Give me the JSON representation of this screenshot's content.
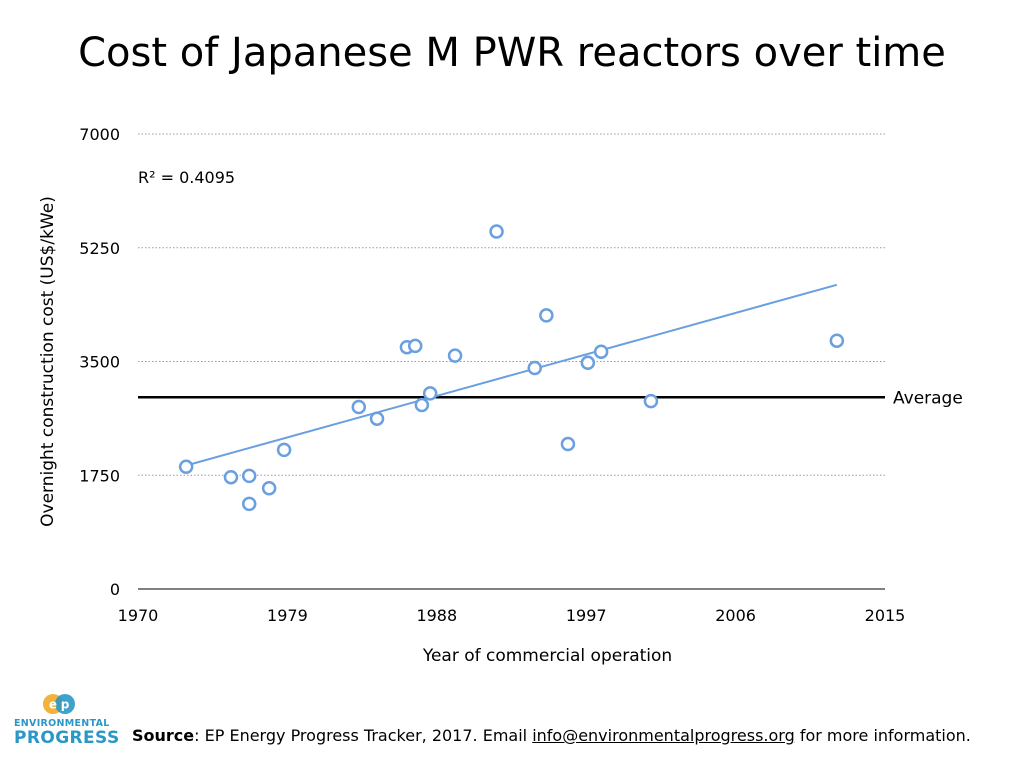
{
  "title": "Cost of Japanese M PWR reactors over time",
  "chart_data": {
    "type": "scatter",
    "xlabel": "Year of commercial operation",
    "ylabel": "Overnight construction cost (US$/kWe)",
    "xlim": [
      1970,
      2015
    ],
    "ylim": [
      0,
      7000
    ],
    "x_ticks": [
      1970,
      1979,
      1988,
      1997,
      2006,
      2015
    ],
    "y_ticks": [
      0,
      1750,
      3500,
      5250,
      7000
    ],
    "grid": "horizontal dotted",
    "points": [
      {
        "x": 1972.9,
        "y": 1880
      },
      {
        "x": 1975.6,
        "y": 1720
      },
      {
        "x": 1976.7,
        "y": 1740
      },
      {
        "x": 1976.7,
        "y": 1310
      },
      {
        "x": 1977.9,
        "y": 1550
      },
      {
        "x": 1978.8,
        "y": 2140
      },
      {
        "x": 1983.3,
        "y": 2800
      },
      {
        "x": 1984.4,
        "y": 2620
      },
      {
        "x": 1986.2,
        "y": 3720
      },
      {
        "x": 1986.7,
        "y": 3740
      },
      {
        "x": 1987.1,
        "y": 2830
      },
      {
        "x": 1987.6,
        "y": 3010
      },
      {
        "x": 1989.1,
        "y": 3590
      },
      {
        "x": 1991.6,
        "y": 5500
      },
      {
        "x": 1993.9,
        "y": 3400
      },
      {
        "x": 1994.6,
        "y": 4210
      },
      {
        "x": 1995.9,
        "y": 2230
      },
      {
        "x": 1997.1,
        "y": 3480
      },
      {
        "x": 1997.9,
        "y": 3650
      },
      {
        "x": 2000.9,
        "y": 2890
      },
      {
        "x": 2012.1,
        "y": 3820
      }
    ],
    "trendline": {
      "x": [
        1972.9,
        2012.1
      ],
      "y": [
        1900,
        4680
      ]
    },
    "r_squared_label": "R² = 0.4095",
    "average": {
      "value": 2950,
      "label": "Average"
    },
    "colors": {
      "points": "#6a9fe0",
      "trend": "#6a9fe0",
      "average": "#000000",
      "grid": "#999999"
    }
  },
  "footer": {
    "source_label": "Source",
    "source_text": ": EP Energy Progress Tracker, 2017. Email ",
    "email": "info@environmentalprogress.org",
    "source_tail": " for more information."
  },
  "logo": {
    "line1": "ENVIRONMENTAL",
    "line2": "PROGRESS",
    "colors": {
      "left": "#f3b23a",
      "right": "#2a98c6"
    }
  }
}
